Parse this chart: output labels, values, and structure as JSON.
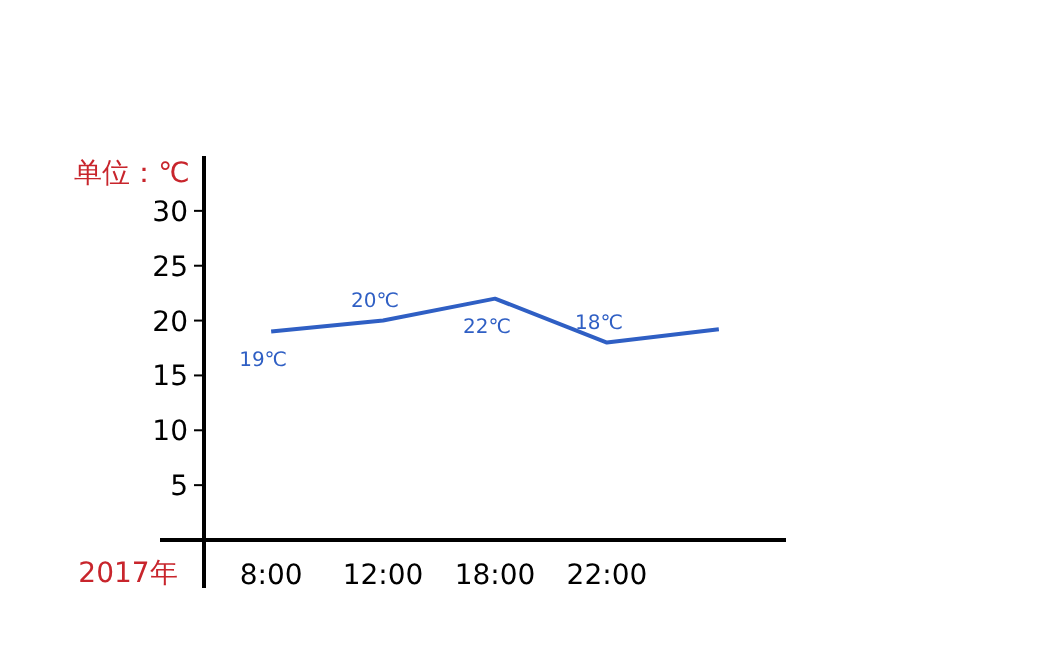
{
  "chart_data": {
    "type": "line",
    "xlabel": "2017年",
    "ylabel": "单位：℃",
    "categories": [
      "8:00",
      "12:00",
      "18:00",
      "22:00",
      null
    ],
    "values": [
      19,
      20,
      22,
      18,
      19.2
    ],
    "color": "#2f5fc4",
    "value_labels": [
      "19℃",
      "20℃",
      "22℃",
      "18℃",
      null
    ],
    "ylim": [
      0,
      35
    ],
    "yticks": [
      5,
      10,
      15,
      20,
      25,
      30
    ]
  }
}
